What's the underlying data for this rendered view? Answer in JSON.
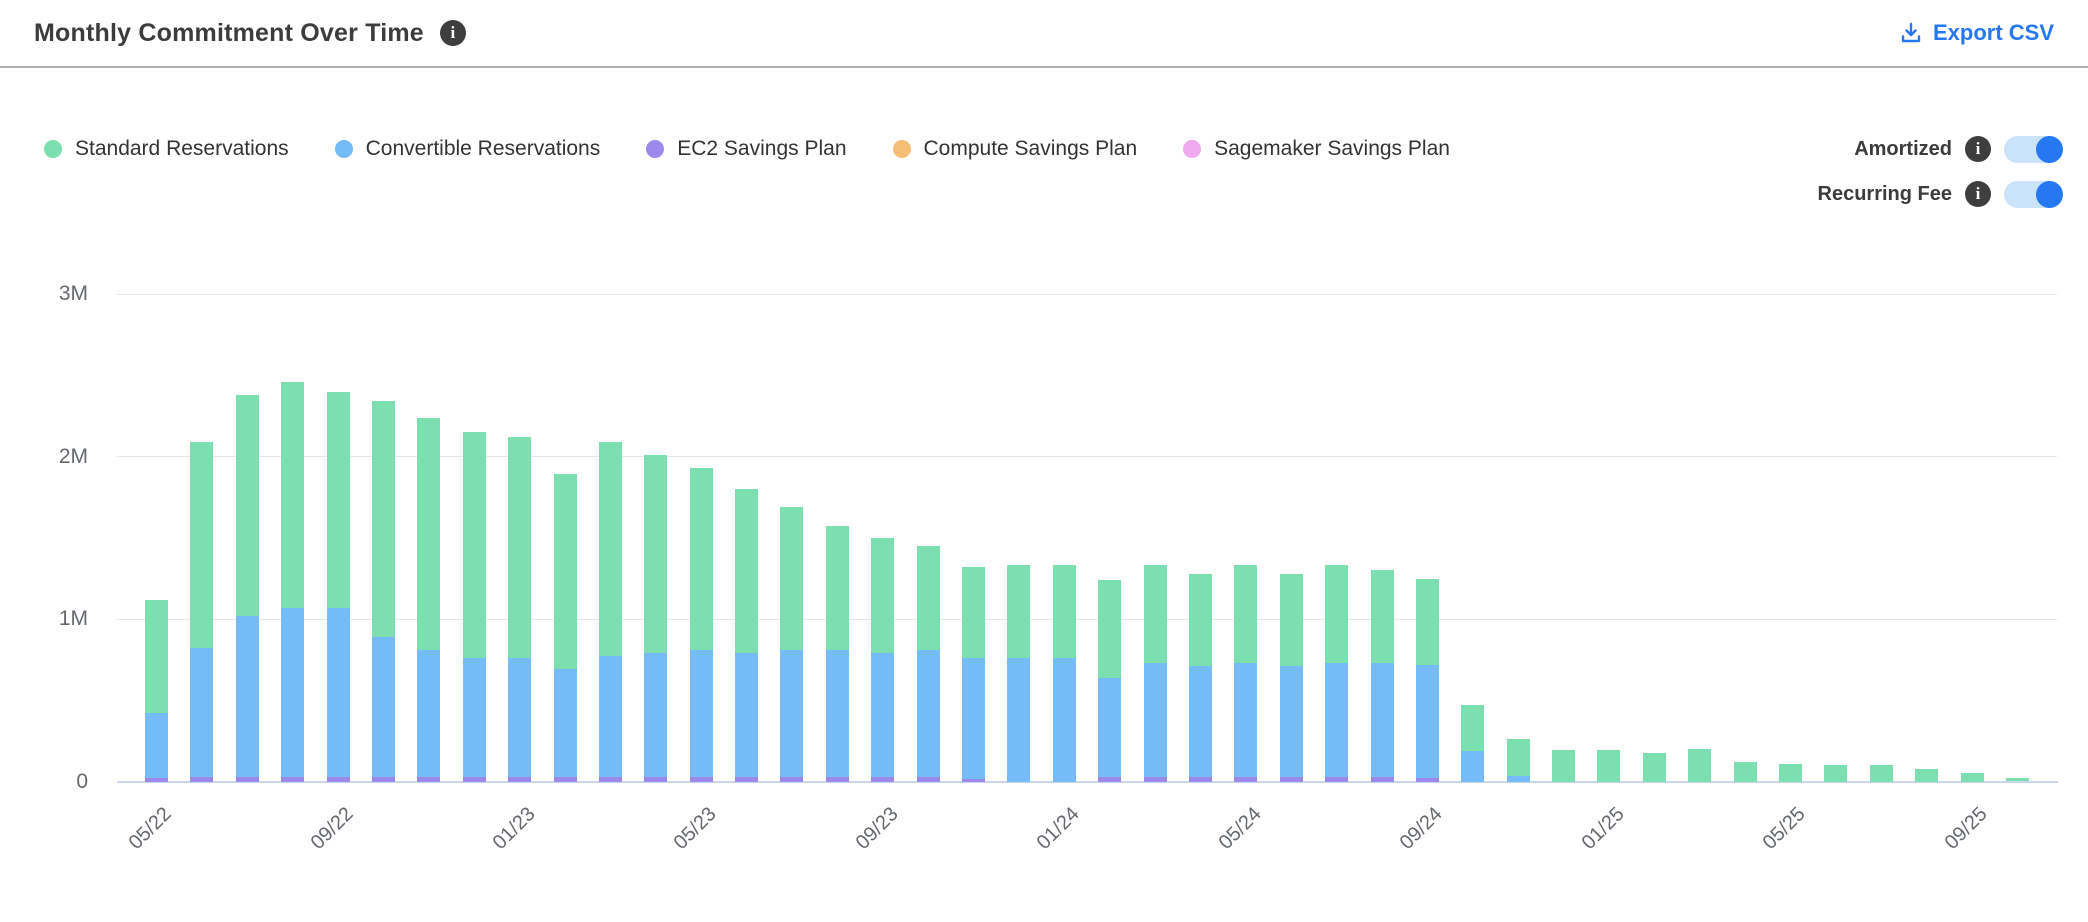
{
  "header": {
    "title": "Monthly Commitment Over Time",
    "export_label": "Export CSV"
  },
  "legend": {
    "items": [
      {
        "label": "Standard Reservations",
        "color": "#7BDFB0"
      },
      {
        "label": "Convertible Reservations",
        "color": "#75BBF8"
      },
      {
        "label": "EC2 Savings Plan",
        "color": "#9C89EB"
      },
      {
        "label": "Compute Savings Plan",
        "color": "#F4BE75"
      },
      {
        "label": "Sagemaker Savings Plan",
        "color": "#EFA9EE"
      }
    ]
  },
  "toggles": [
    {
      "label": "Amortized",
      "state": "on"
    },
    {
      "label": "Recurring Fee",
      "state": "on"
    }
  ],
  "colors": {
    "accent_blue": "#2577F2",
    "toggle_track": "#CBE2FB",
    "info_icon_bg": "#3E3E3E",
    "gridline": "#E7E7E7",
    "axis_line": "#CCD6EB",
    "divider": "#B0B0B0",
    "text_dark": "#3B3B3B",
    "text_muted": "#65696E"
  },
  "chart_data": {
    "type": "bar",
    "stacked": true,
    "title": "Monthly Commitment Over Time",
    "unit": "USD, values in millions",
    "grid": "horizontal",
    "legend_position": "top-left",
    "ylim": [
      0,
      3
    ],
    "yticks": [
      "0",
      "1M",
      "2M",
      "3M"
    ],
    "categories": [
      "05/22",
      "06/22",
      "07/22",
      "08/22",
      "09/22",
      "10/22",
      "11/22",
      "12/22",
      "01/23",
      "02/23",
      "03/23",
      "04/23",
      "05/23",
      "06/23",
      "07/23",
      "08/23",
      "09/23",
      "10/23",
      "11/23",
      "12/23",
      "01/24",
      "02/24",
      "03/24",
      "04/24",
      "05/24",
      "06/24",
      "07/24",
      "08/24",
      "09/24",
      "10/24",
      "11/24",
      "12/24",
      "01/25",
      "02/25",
      "03/25",
      "04/25",
      "05/25",
      "06/25",
      "07/25",
      "08/25",
      "09/25",
      "10/25"
    ],
    "x_tick_indices": [
      0,
      4,
      8,
      12,
      16,
      20,
      24,
      28,
      32,
      36,
      40
    ],
    "x_tick_labels": [
      "05/22",
      "09/22",
      "01/23",
      "05/23",
      "09/23",
      "01/24",
      "05/24",
      "09/24",
      "01/25",
      "05/25",
      "09/25"
    ],
    "stack_order_bottom_to_top": [
      "Sagemaker Savings Plan",
      "Compute Savings Plan",
      "EC2 Savings Plan",
      "Convertible Reservations",
      "Standard Reservations"
    ],
    "series": [
      {
        "name": "Standard Reservations",
        "color": "#7BDFB0",
        "values": [
          0.7,
          1.27,
          1.36,
          1.39,
          1.33,
          1.45,
          1.43,
          1.39,
          1.36,
          1.2,
          1.32,
          1.22,
          1.12,
          1.01,
          0.88,
          0.76,
          0.71,
          0.64,
          0.56,
          0.57,
          0.57,
          0.6,
          0.6,
          0.57,
          0.6,
          0.57,
          0.6,
          0.57,
          0.53,
          0.28,
          0.225,
          0.195,
          0.195,
          0.175,
          0.2,
          0.12,
          0.11,
          0.1,
          0.1,
          0.075,
          0.05,
          0.022
        ]
      },
      {
        "name": "Convertible Reservations",
        "color": "#75BBF8",
        "values": [
          0.4,
          0.79,
          0.99,
          1.04,
          1.04,
          0.86,
          0.78,
          0.73,
          0.73,
          0.66,
          0.74,
          0.76,
          0.78,
          0.76,
          0.78,
          0.78,
          0.76,
          0.78,
          0.745,
          0.76,
          0.76,
          0.615,
          0.705,
          0.685,
          0.705,
          0.685,
          0.705,
          0.705,
          0.695,
          0.19,
          0.035,
          0,
          0,
          0,
          0,
          0,
          0,
          0,
          0,
          0,
          0,
          0
        ]
      },
      {
        "name": "EC2 Savings Plan",
        "color": "#9C89EB",
        "values": [
          0.02,
          0.03,
          0.03,
          0.03,
          0.03,
          0.03,
          0.03,
          0.03,
          0.03,
          0.03,
          0.03,
          0.03,
          0.03,
          0.03,
          0.03,
          0.03,
          0.03,
          0.03,
          0.015,
          0,
          0,
          0.025,
          0.025,
          0.025,
          0.025,
          0.025,
          0.025,
          0.025,
          0.02,
          0,
          0,
          0,
          0,
          0,
          0,
          0,
          0,
          0,
          0,
          0,
          0,
          0
        ]
      },
      {
        "name": "Compute Savings Plan",
        "color": "#F4BE75",
        "values": [
          0,
          0,
          0,
          0,
          0,
          0,
          0,
          0,
          0,
          0,
          0,
          0,
          0,
          0,
          0,
          0,
          0,
          0,
          0,
          0,
          0,
          0,
          0,
          0,
          0,
          0,
          0,
          0,
          0,
          0,
          0,
          0,
          0,
          0,
          0,
          0,
          0,
          0,
          0,
          0,
          0,
          0
        ]
      },
      {
        "name": "Sagemaker Savings Plan",
        "color": "#EFA9EE",
        "values": [
          0,
          0,
          0,
          0,
          0,
          0,
          0,
          0,
          0,
          0,
          0,
          0,
          0,
          0,
          0,
          0,
          0,
          0,
          0,
          0,
          0,
          0,
          0,
          0,
          0,
          0,
          0,
          0,
          0,
          0,
          0,
          0,
          0,
          0,
          0,
          0,
          0,
          0,
          0,
          0,
          0,
          0
        ]
      }
    ]
  }
}
